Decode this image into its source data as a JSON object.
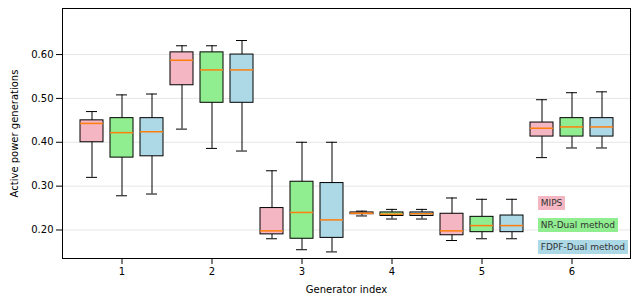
{
  "chart_data": {
    "type": "box",
    "x_label": "Generator index",
    "y_label": "Active power generations",
    "categories": [
      1,
      2,
      3,
      4,
      5,
      6
    ],
    "series": [
      {
        "name": "MIPS",
        "color": "#f4b6c2",
        "min": [
          0.32,
          0.43,
          0.18,
          0.232,
          0.176,
          0.365
        ],
        "q1": [
          0.4,
          0.53,
          0.19,
          0.236,
          0.188,
          0.413
        ],
        "median": [
          0.443,
          0.587,
          0.198,
          0.238,
          0.198,
          0.432
        ],
        "q3": [
          0.45,
          0.605,
          0.25,
          0.24,
          0.237,
          0.445
        ],
        "max": [
          0.47,
          0.62,
          0.335,
          0.243,
          0.273,
          0.497
        ]
      },
      {
        "name": "NR-Dual method",
        "color": "#90ee90",
        "min": [
          0.278,
          0.386,
          0.155,
          0.225,
          0.18,
          0.387
        ],
        "q1": [
          0.365,
          0.49,
          0.18,
          0.232,
          0.195,
          0.413
        ],
        "median": [
          0.422,
          0.565,
          0.24,
          0.236,
          0.21,
          0.435
        ],
        "q3": [
          0.455,
          0.605,
          0.31,
          0.24,
          0.23,
          0.455
        ],
        "max": [
          0.508,
          0.62,
          0.4,
          0.247,
          0.27,
          0.513
        ]
      },
      {
        "name": "FDPF-Dual method",
        "color": "#add8e6",
        "min": [
          0.282,
          0.38,
          0.15,
          0.225,
          0.18,
          0.387
        ],
        "q1": [
          0.368,
          0.49,
          0.182,
          0.232,
          0.195,
          0.413
        ],
        "median": [
          0.424,
          0.565,
          0.223,
          0.237,
          0.21,
          0.435
        ],
        "q3": [
          0.455,
          0.6,
          0.307,
          0.24,
          0.233,
          0.455
        ],
        "max": [
          0.51,
          0.632,
          0.4,
          0.247,
          0.27,
          0.515
        ]
      }
    ],
    "ylim": [
      0.135,
      0.705
    ],
    "yticks": [
      0.2,
      0.3,
      0.4,
      0.5,
      0.6
    ],
    "grid": true,
    "legend": "lower right"
  }
}
